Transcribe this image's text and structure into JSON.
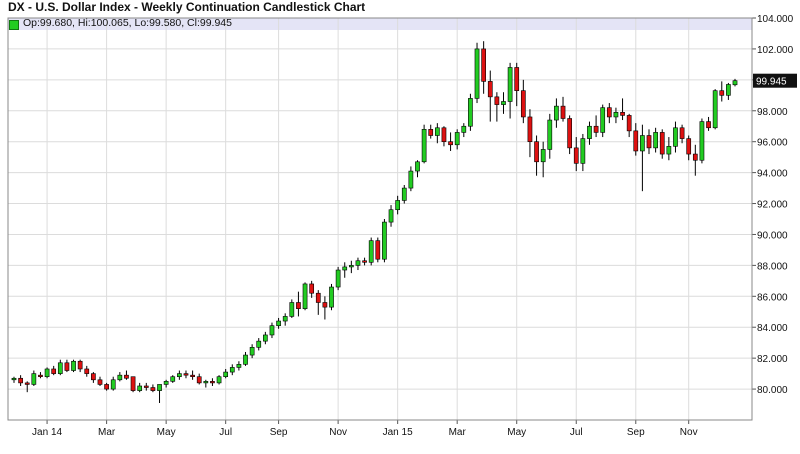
{
  "title": "DX - U.S. Dollar Index - Weekly Continuation Candlestick Chart",
  "ohlc_readout": "Op:99.680, Hi:100.065, Lo:99.580, Cl:99.945",
  "last_price_label": "99.945",
  "colors": {
    "up": "#22cc22",
    "down": "#dd1111",
    "grid": "#dcdcdc",
    "header_band": "#e4e4f6",
    "border": "#888888"
  },
  "chart_data": {
    "type": "candlestick",
    "title": "DX - U.S. Dollar Index - Weekly Continuation Candlestick Chart",
    "ylim": [
      78.0,
      104.0
    ],
    "y_ticks": [
      "80.000",
      "82.000",
      "84.000",
      "86.000",
      "88.000",
      "90.000",
      "92.000",
      "94.000",
      "96.000",
      "98.000",
      "100.000",
      "102.000",
      "104.000"
    ],
    "x_labels": [
      {
        "label": "Jan 14",
        "index": 5
      },
      {
        "label": "Mar",
        "index": 14
      },
      {
        "label": "May",
        "index": 23
      },
      {
        "label": "Jul",
        "index": 32
      },
      {
        "label": "Sep",
        "index": 40
      },
      {
        "label": "Nov",
        "index": 49
      },
      {
        "label": "Jan 15",
        "index": 58
      },
      {
        "label": "Mar",
        "index": 67
      },
      {
        "label": "May",
        "index": 76
      },
      {
        "label": "Jul",
        "index": 85
      },
      {
        "label": "Sep",
        "index": 94
      },
      {
        "label": "Nov",
        "index": 102
      }
    ],
    "grid": true,
    "last_value": 99.945,
    "candles": [
      [
        80.6,
        80.8,
        80.4,
        80.7
      ],
      [
        80.7,
        80.9,
        80.2,
        80.4
      ],
      [
        80.4,
        80.5,
        79.8,
        80.3
      ],
      [
        80.3,
        81.2,
        80.2,
        81.0
      ],
      [
        80.9,
        81.1,
        80.7,
        80.8
      ],
      [
        80.8,
        81.4,
        80.7,
        81.3
      ],
      [
        81.3,
        81.5,
        80.9,
        81.0
      ],
      [
        81.0,
        81.9,
        80.9,
        81.7
      ],
      [
        81.7,
        81.9,
        81.1,
        81.2
      ],
      [
        81.2,
        81.9,
        81.1,
        81.8
      ],
      [
        81.8,
        81.9,
        81.1,
        81.3
      ],
      [
        81.3,
        81.5,
        80.8,
        81.0
      ],
      [
        81.0,
        81.1,
        80.4,
        80.6
      ],
      [
        80.6,
        80.8,
        80.2,
        80.3
      ],
      [
        80.3,
        80.4,
        79.9,
        80.0
      ],
      [
        80.0,
        80.8,
        79.9,
        80.6
      ],
      [
        80.6,
        81.1,
        80.5,
        80.9
      ],
      [
        80.9,
        81.2,
        80.6,
        80.7
      ],
      [
        80.8,
        80.8,
        79.8,
        79.9
      ],
      [
        79.9,
        80.4,
        79.8,
        80.2
      ],
      [
        80.2,
        80.4,
        79.9,
        80.1
      ],
      [
        80.1,
        80.3,
        79.8,
        79.9
      ],
      [
        79.9,
        80.3,
        79.1,
        80.3
      ],
      [
        80.3,
        80.6,
        80.1,
        80.5
      ],
      [
        80.5,
        80.9,
        80.4,
        80.8
      ],
      [
        80.8,
        81.2,
        80.6,
        81.0
      ],
      [
        81.0,
        81.2,
        80.7,
        80.9
      ],
      [
        80.9,
        81.2,
        80.6,
        80.8
      ],
      [
        80.8,
        81.0,
        80.3,
        80.4
      ],
      [
        80.4,
        80.6,
        80.1,
        80.5
      ],
      [
        80.5,
        80.7,
        80.2,
        80.4
      ],
      [
        80.4,
        80.9,
        80.3,
        80.8
      ],
      [
        80.8,
        81.3,
        80.7,
        81.1
      ],
      [
        81.1,
        81.6,
        80.9,
        81.4
      ],
      [
        81.4,
        81.8,
        81.2,
        81.6
      ],
      [
        81.6,
        82.4,
        81.5,
        82.2
      ],
      [
        82.2,
        82.9,
        82.0,
        82.7
      ],
      [
        82.7,
        83.3,
        82.5,
        83.1
      ],
      [
        83.1,
        83.7,
        82.9,
        83.5
      ],
      [
        83.5,
        84.3,
        83.3,
        84.1
      ],
      [
        84.1,
        84.6,
        83.9,
        84.4
      ],
      [
        84.4,
        84.9,
        84.1,
        84.7
      ],
      [
        84.7,
        85.8,
        84.6,
        85.6
      ],
      [
        85.6,
        86.3,
        84.7,
        85.2
      ],
      [
        85.2,
        86.9,
        85.1,
        86.8
      ],
      [
        86.8,
        87.0,
        85.9,
        86.2
      ],
      [
        86.2,
        86.4,
        84.8,
        85.6
      ],
      [
        85.6,
        86.0,
        84.5,
        85.3
      ],
      [
        85.3,
        86.8,
        85.1,
        86.6
      ],
      [
        86.6,
        87.9,
        86.4,
        87.7
      ],
      [
        87.7,
        88.2,
        87.2,
        87.9
      ],
      [
        87.9,
        88.3,
        87.5,
        88.0
      ],
      [
        88.0,
        88.5,
        87.7,
        88.3
      ],
      [
        88.3,
        88.5,
        88.0,
        88.2
      ],
      [
        88.2,
        89.8,
        88.0,
        89.6
      ],
      [
        89.6,
        89.8,
        88.2,
        88.4
      ],
      [
        88.4,
        91.0,
        88.2,
        90.8
      ],
      [
        90.8,
        91.9,
        90.5,
        91.6
      ],
      [
        91.6,
        92.5,
        91.3,
        92.2
      ],
      [
        92.2,
        93.2,
        92.0,
        93.0
      ],
      [
        93.0,
        94.4,
        92.8,
        94.1
      ],
      [
        94.1,
        94.8,
        93.7,
        94.7
      ],
      [
        94.7,
        97.1,
        94.6,
        96.8
      ],
      [
        96.8,
        97.1,
        96.2,
        96.4
      ],
      [
        96.4,
        97.2,
        95.9,
        96.9
      ],
      [
        96.9,
        97.0,
        95.7,
        96.0
      ],
      [
        96.0,
        96.6,
        95.4,
        95.8
      ],
      [
        95.8,
        96.8,
        95.5,
        96.6
      ],
      [
        96.6,
        97.2,
        96.3,
        97.0
      ],
      [
        97.0,
        99.1,
        96.7,
        98.8
      ],
      [
        98.8,
        102.4,
        98.5,
        102.0
      ],
      [
        102.0,
        102.5,
        99.1,
        99.9
      ],
      [
        99.9,
        100.6,
        97.3,
        98.9
      ],
      [
        98.9,
        99.2,
        97.3,
        98.4
      ],
      [
        98.4,
        99.2,
        97.8,
        98.6
      ],
      [
        98.6,
        101.1,
        97.5,
        100.8
      ],
      [
        100.8,
        101.1,
        98.3,
        99.3
      ],
      [
        99.3,
        100.0,
        97.2,
        97.6
      ],
      [
        97.6,
        98.1,
        95.0,
        96.0
      ],
      [
        96.0,
        96.4,
        93.8,
        94.7
      ],
      [
        94.7,
        96.0,
        93.7,
        95.5
      ],
      [
        95.5,
        97.8,
        94.9,
        97.4
      ],
      [
        97.4,
        98.8,
        96.9,
        98.3
      ],
      [
        98.3,
        98.9,
        97.3,
        97.5
      ],
      [
        97.5,
        97.7,
        95.2,
        95.6
      ],
      [
        95.6,
        96.3,
        94.1,
        94.6
      ],
      [
        94.6,
        96.5,
        94.1,
        96.2
      ],
      [
        96.2,
        97.3,
        95.8,
        97.0
      ],
      [
        97.0,
        97.7,
        96.3,
        96.6
      ],
      [
        96.6,
        98.4,
        96.3,
        98.2
      ],
      [
        98.2,
        98.5,
        97.2,
        97.6
      ],
      [
        97.6,
        98.2,
        97.2,
        97.9
      ],
      [
        97.9,
        98.8,
        97.4,
        97.7
      ],
      [
        97.7,
        97.8,
        96.3,
        96.7
      ],
      [
        96.7,
        97.2,
        95.1,
        95.4
      ],
      [
        95.4,
        97.1,
        92.8,
        96.4
      ],
      [
        96.4,
        96.8,
        95.2,
        95.6
      ],
      [
        95.6,
        96.9,
        95.3,
        96.6
      ],
      [
        96.6,
        96.8,
        94.9,
        95.2
      ],
      [
        95.2,
        96.3,
        94.8,
        95.7
      ],
      [
        95.7,
        97.3,
        95.3,
        96.9
      ],
      [
        96.9,
        97.1,
        95.9,
        96.2
      ],
      [
        96.2,
        96.4,
        94.8,
        95.2
      ],
      [
        95.2,
        95.8,
        93.8,
        94.8
      ],
      [
        94.8,
        97.5,
        94.6,
        97.3
      ],
      [
        97.3,
        97.6,
        96.7,
        96.9
      ],
      [
        96.9,
        99.4,
        96.8,
        99.3
      ],
      [
        99.3,
        99.9,
        98.6,
        99.0
      ],
      [
        99.0,
        99.8,
        98.7,
        99.7
      ],
      [
        99.68,
        100.065,
        99.58,
        99.945
      ]
    ]
  }
}
